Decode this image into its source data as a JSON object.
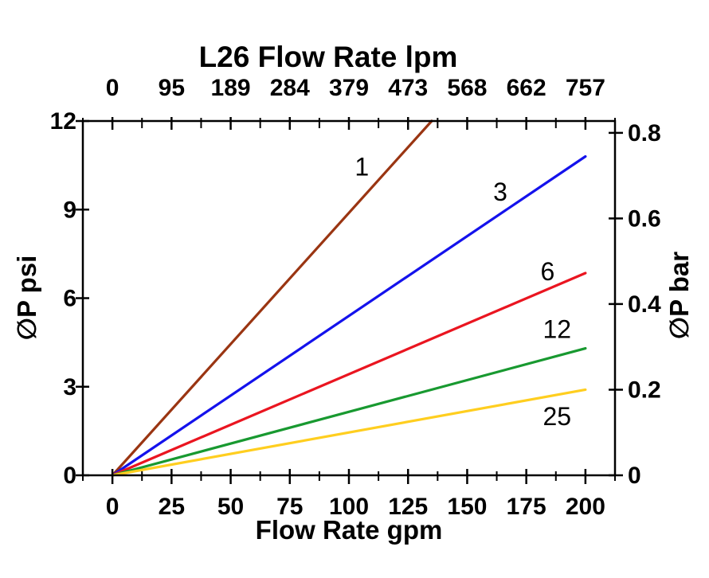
{
  "chart_data": {
    "type": "line",
    "title": "L26 Flow Rate lpm",
    "grid": false,
    "x_axis_bottom": {
      "label": "Flow Rate gpm",
      "unit": "gpm",
      "ticks": [
        0,
        25,
        50,
        75,
        100,
        125,
        150,
        175,
        200
      ],
      "minor_step": 12.5,
      "range": [
        -12.5,
        212.5
      ]
    },
    "x_axis_top": {
      "label": "L26 Flow Rate lpm",
      "unit": "lpm",
      "tick_labels": [
        "0",
        "95",
        "189",
        "284",
        "379",
        "473",
        "568",
        "662",
        "757"
      ]
    },
    "y_axis_left": {
      "label": "∅P psi",
      "unit": "psi",
      "ticks": [
        0,
        3,
        6,
        9,
        12
      ],
      "range": [
        0,
        12
      ]
    },
    "y_axis_right": {
      "label": "∅P bar",
      "unit": "bar",
      "ticks": [
        0,
        0.2,
        0.4,
        0.6,
        0.8
      ],
      "psi_per_bar": 14.5
    },
    "series": [
      {
        "label": "1",
        "color": "#9A3512",
        "x_gpm": [
          0,
          135
        ],
        "y_psi": [
          0,
          12
        ],
        "label_at": [
          105.5,
          10.45
        ]
      },
      {
        "label": "3",
        "color": "#1412EC",
        "x_gpm": [
          0,
          200
        ],
        "y_psi": [
          0,
          10.8
        ],
        "label_at": [
          164,
          9.6
        ]
      },
      {
        "label": "6",
        "color": "#EA1520",
        "x_gpm": [
          0,
          200
        ],
        "y_psi": [
          0,
          6.85
        ],
        "label_at": [
          184,
          6.9
        ]
      },
      {
        "label": "12",
        "color": "#189930",
        "x_gpm": [
          0,
          200
        ],
        "y_psi": [
          0,
          4.3
        ],
        "label_at": [
          188,
          4.95
        ]
      },
      {
        "label": "25",
        "color": "#FFCE1F",
        "x_gpm": [
          0,
          200
        ],
        "y_psi": [
          0,
          2.9
        ],
        "label_at": [
          188,
          2.0
        ]
      }
    ]
  }
}
